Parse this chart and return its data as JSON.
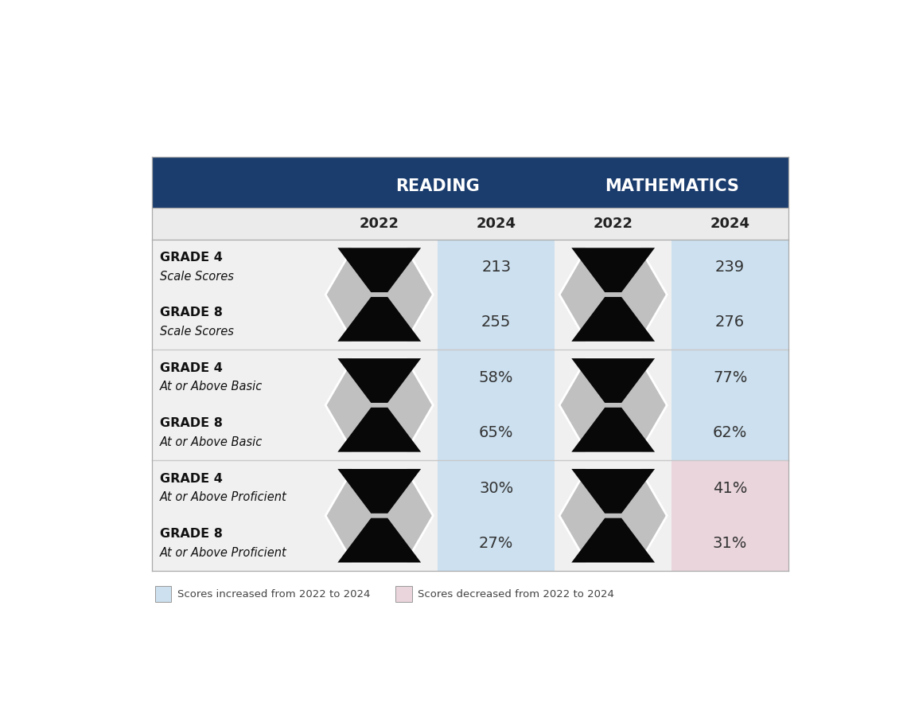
{
  "header_bg": "#1b3d6e",
  "header_text_color": "#ffffff",
  "subheader_bg": "#ebebeb",
  "reading_label": "READING",
  "math_label": "MATHEMATICS",
  "col_years": [
    "2022",
    "2024",
    "2022",
    "2024"
  ],
  "row_labels": [
    [
      "GRADE 4",
      "Scale Scores"
    ],
    [
      "GRADE 8",
      "Scale Scores"
    ],
    [
      "GRADE 4",
      "At or Above Basic"
    ],
    [
      "GRADE 8",
      "At or Above Basic"
    ],
    [
      "GRADE 4",
      "At or Above Proficient"
    ],
    [
      "GRADE 8",
      "At or Above Proficient"
    ]
  ],
  "values_2024": [
    [
      "213",
      "239"
    ],
    [
      "255",
      "276"
    ],
    [
      "58%",
      "77%"
    ],
    [
      "65%",
      "62%"
    ],
    [
      "30%",
      "41%"
    ],
    [
      "27%",
      "31%"
    ]
  ],
  "reading_2024_bg": "#cce0ef",
  "math_2024_bg_blue": "#cce0ef",
  "math_2024_bg_pink": "#ead5dc",
  "row_label_bg": "#f0f0f0",
  "hex_gray": "#c0c0c0",
  "bowtie_color": "#080808",
  "sep_color": "#c8c8c8",
  "border_color": "#aaaaaa",
  "legend_blue_text": "Scores increased from 2022 to 2024",
  "legend_pink_text": "Scores decreased from 2022 to 2024"
}
